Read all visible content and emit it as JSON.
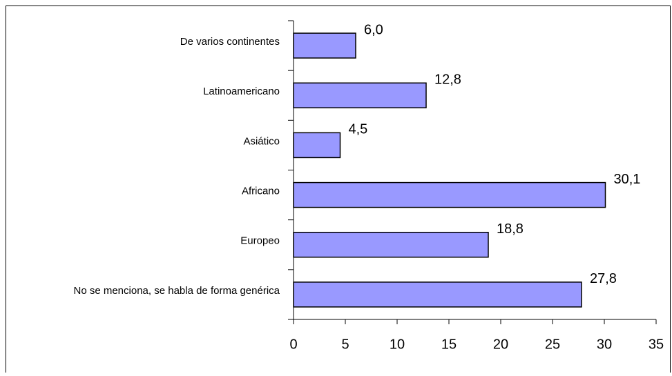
{
  "chart_data": {
    "type": "barh",
    "categories": [
      "De varios continentes",
      "Latinoamericano",
      "Asiático",
      "Africano",
      "Europeo",
      "No se menciona, se habla de forma genérica"
    ],
    "values": [
      6.0,
      12.8,
      4.5,
      30.1,
      18.8,
      27.8
    ],
    "value_labels": [
      "6,0",
      "12,8",
      "4,5",
      "30,1",
      "18,8",
      "27,8"
    ],
    "color": "#9999ff",
    "xlim": [
      0,
      35
    ],
    "xticks": [
      0,
      5,
      10,
      15,
      20,
      25,
      30,
      35
    ]
  }
}
